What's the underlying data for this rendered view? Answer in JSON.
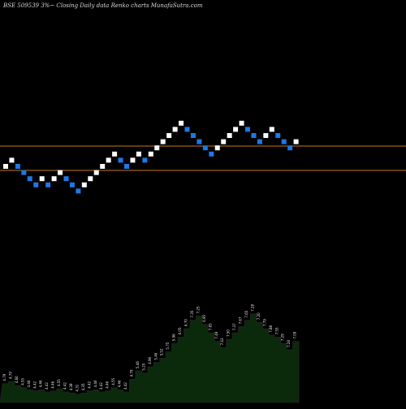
{
  "chart_data": {
    "type": "renko",
    "title": "BSE 509539 3%~  Closing Daily data  Renko  charts MunafaSutra.com",
    "colors": {
      "background": "#000000",
      "up_brick": "#ffffff",
      "down_brick": "#1e78e6",
      "reference_line": "#c8781e",
      "volume_fill": "#0b2a0b",
      "volume_stroke": "#222222",
      "volume_label": "#e8e8e8"
    },
    "reference_lines": [
      "upper",
      "lower"
    ],
    "bricks": [
      {
        "dir": "up",
        "level": 0
      },
      {
        "dir": "up",
        "level": 1
      },
      {
        "dir": "down",
        "level": 0
      },
      {
        "dir": "down",
        "level": -1
      },
      {
        "dir": "down",
        "level": -2
      },
      {
        "dir": "down",
        "level": -3
      },
      {
        "dir": "up",
        "level": -2
      },
      {
        "dir": "down",
        "level": -3
      },
      {
        "dir": "up",
        "level": -2
      },
      {
        "dir": "up",
        "level": -1
      },
      {
        "dir": "down",
        "level": -2
      },
      {
        "dir": "down",
        "level": -3
      },
      {
        "dir": "down",
        "level": -4
      },
      {
        "dir": "up",
        "level": -3
      },
      {
        "dir": "up",
        "level": -2
      },
      {
        "dir": "up",
        "level": -1
      },
      {
        "dir": "up",
        "level": 0
      },
      {
        "dir": "up",
        "level": 1
      },
      {
        "dir": "up",
        "level": 2
      },
      {
        "dir": "down",
        "level": 1
      },
      {
        "dir": "down",
        "level": 0
      },
      {
        "dir": "up",
        "level": 1
      },
      {
        "dir": "up",
        "level": 2
      },
      {
        "dir": "down",
        "level": 1
      },
      {
        "dir": "up",
        "level": 2
      },
      {
        "dir": "up",
        "level": 3
      },
      {
        "dir": "up",
        "level": 4
      },
      {
        "dir": "up",
        "level": 5
      },
      {
        "dir": "up",
        "level": 6
      },
      {
        "dir": "up",
        "level": 7
      },
      {
        "dir": "down",
        "level": 6
      },
      {
        "dir": "down",
        "level": 5
      },
      {
        "dir": "down",
        "level": 4
      },
      {
        "dir": "down",
        "level": 3
      },
      {
        "dir": "down",
        "level": 2
      },
      {
        "dir": "up",
        "level": 3
      },
      {
        "dir": "up",
        "level": 4
      },
      {
        "dir": "up",
        "level": 5
      },
      {
        "dir": "up",
        "level": 6
      },
      {
        "dir": "up",
        "level": 7
      },
      {
        "dir": "down",
        "level": 6
      },
      {
        "dir": "down",
        "level": 5
      },
      {
        "dir": "down",
        "level": 4
      },
      {
        "dir": "up",
        "level": 5
      },
      {
        "dir": "up",
        "level": 6
      },
      {
        "dir": "down",
        "level": 5
      },
      {
        "dir": "down",
        "level": 4
      },
      {
        "dir": "down",
        "level": 3
      },
      {
        "dir": "up",
        "level": 4
      }
    ],
    "volume_labels": [
      "4.79",
      "4.79",
      "4.66",
      "4.55",
      "4.46",
      "4.42",
      "4.46",
      "4.42",
      "4.46",
      "4.55",
      "4.42",
      "4.38",
      "4.31",
      "4.35",
      "4.42",
      "4.46",
      "4.42",
      "4.46",
      "4.55",
      "4.46",
      "4.42",
      "4.79",
      "5.46",
      "5.25",
      "4.96",
      "5.46",
      "5.52",
      "5.75",
      "5.96",
      "6.05",
      "6.70",
      "7.35",
      "7.25",
      "6.95",
      "7.65",
      "7.49",
      "7.43",
      "7.50",
      "7.37",
      "7.67",
      "7.65",
      "7.28",
      "7.20",
      "7.79",
      "7.88",
      "7.55",
      "7.29",
      "7.28",
      "7.09"
    ],
    "volume_heights": [
      0.18,
      0.2,
      0.16,
      0.14,
      0.12,
      0.11,
      0.12,
      0.1,
      0.11,
      0.13,
      0.1,
      0.09,
      0.08,
      0.09,
      0.11,
      0.12,
      0.1,
      0.11,
      0.14,
      0.12,
      0.1,
      0.22,
      0.3,
      0.28,
      0.34,
      0.38,
      0.42,
      0.48,
      0.56,
      0.62,
      0.7,
      0.78,
      0.82,
      0.74,
      0.66,
      0.58,
      0.52,
      0.6,
      0.66,
      0.72,
      0.78,
      0.84,
      0.76,
      0.7,
      0.64,
      0.62,
      0.56,
      0.5,
      0.58
    ]
  }
}
